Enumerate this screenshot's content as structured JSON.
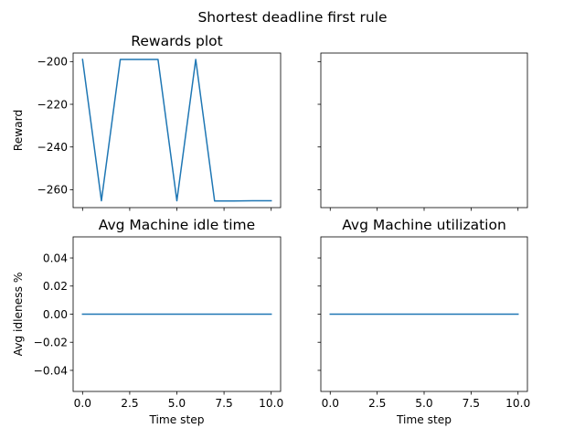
{
  "chart_data": {
    "title": "Shortest deadline first rule",
    "type": "line",
    "line_color": "#1f77b4",
    "subplots": [
      {
        "id": "rewards",
        "title": "Rewards plot",
        "ylabel": "Reward",
        "xlabel": "",
        "xlim": [
          -0.5,
          10.5
        ],
        "ylim": [
          -268.4,
          -196.0
        ],
        "xticks": [
          0,
          2.5,
          5,
          7.5,
          10
        ],
        "xtick_labels": [],
        "yticks": [
          -260,
          -240,
          -220,
          -200
        ],
        "ytick_labels": [
          "−260",
          "−240",
          "−220",
          "−200"
        ],
        "series": [
          {
            "x": [
              0,
              1,
              2,
              3,
              4,
              5,
              6,
              7,
              8,
              9,
              10
            ],
            "y": [
              -199.0,
              -265.2,
              -199.0,
              -199.0,
              -199.0,
              -265.2,
              -199.0,
              -265.3,
              -265.3,
              -265.2,
              -265.2
            ]
          }
        ]
      },
      {
        "id": "empty",
        "title": "",
        "ylabel": "",
        "xlabel": "",
        "xlim": [
          -0.5,
          10.5
        ],
        "ylim": [
          -268.4,
          -196.0
        ],
        "xticks": [
          0,
          2.5,
          5,
          7.5,
          10
        ],
        "xtick_labels": [],
        "yticks": [
          -260,
          -240,
          -220,
          -200
        ],
        "ytick_labels": [],
        "series": []
      },
      {
        "id": "idle",
        "title": "Avg Machine idle time",
        "ylabel": "Avg idleness %",
        "xlabel": "Time step",
        "xlim": [
          -0.5,
          10.5
        ],
        "ylim": [
          -0.055,
          0.055
        ],
        "xticks": [
          0,
          2.5,
          5,
          7.5,
          10
        ],
        "xtick_labels": [
          "0.0",
          "2.5",
          "5.0",
          "7.5",
          "10.0"
        ],
        "yticks": [
          -0.04,
          -0.02,
          0,
          0.02,
          0.04
        ],
        "ytick_labels": [
          "−0.04",
          "−0.02",
          "0.00",
          "0.02",
          "0.04"
        ],
        "series": [
          {
            "x": [
              0,
              1,
              2,
              3,
              4,
              5,
              6,
              7,
              8,
              9,
              10
            ],
            "y": [
              0,
              0,
              0,
              0,
              0,
              0,
              0,
              0,
              0,
              0,
              0
            ]
          }
        ]
      },
      {
        "id": "util",
        "title": "Avg Machine utilization",
        "ylabel": "",
        "xlabel": "Time step",
        "xlim": [
          -0.5,
          10.5
        ],
        "ylim": [
          -0.055,
          0.055
        ],
        "xticks": [
          0,
          2.5,
          5,
          7.5,
          10
        ],
        "xtick_labels": [
          "0.0",
          "2.5",
          "5.0",
          "7.5",
          "10.0"
        ],
        "yticks": [
          -0.04,
          -0.02,
          0,
          0.02,
          0.04
        ],
        "ytick_labels": [],
        "series": [
          {
            "x": [
              0,
              1,
              2,
              3,
              4,
              5,
              6,
              7,
              8,
              9,
              10
            ],
            "y": [
              0,
              0,
              0,
              0,
              0,
              0,
              0,
              0,
              0,
              0,
              0
            ]
          }
        ]
      }
    ]
  }
}
